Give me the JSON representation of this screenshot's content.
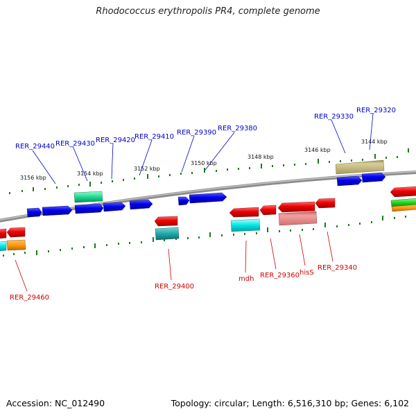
{
  "title": "Rhodococcus erythropolis PR4, complete genome",
  "accession": "Accession: NC_012490",
  "summary": "Topology: circular; Length: 6,516,310 bp; Genes: 6,102",
  "scale_labels": [
    "3156 kbp",
    "3154 kbp",
    "3152 kbp",
    "3150 kbp",
    "3148 kbp",
    "3146 kbp",
    "3144 kbp"
  ],
  "colors": {
    "backbone": "#808080",
    "upper_label": "#0000cc",
    "lower_label": "#cc0000",
    "tick": "#1a7a1a",
    "forward_gene": "#0000ee",
    "reverse_gene": "#ee0000"
  },
  "upper_genes": [
    "RER_29440",
    "RER_29430",
    "RER_29420",
    "RER_29410",
    "RER_29390",
    "RER_29380",
    "RER_29330",
    "RER_29320"
  ],
  "lower_genes": [
    "RER_29460",
    "RER_29400",
    "mdh",
    "RER_29360",
    "hisS",
    "RER_29340"
  ]
}
